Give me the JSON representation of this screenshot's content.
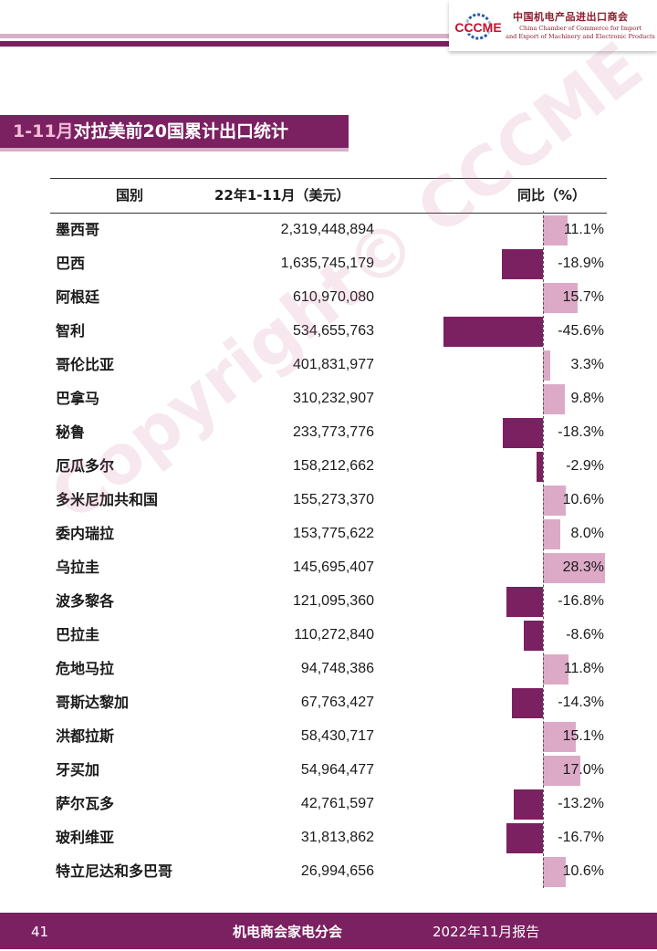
{
  "header": {
    "logo_mark": "CCCME",
    "logo_cn": "中国机电产品进出口商会",
    "logo_en_line1": "China Chamber of Commerce for Import",
    "logo_en_line2": "and Export of Machinery and Electronic Products",
    "brand_color": "#7b2061",
    "accent_color": "#d7b0c8"
  },
  "title": {
    "accent": "1-11月",
    "main": "对拉美前20国累计出口统计"
  },
  "table": {
    "columns": [
      "国别",
      "22年1-11月（美元）",
      "同比（%）"
    ],
    "rows": [
      {
        "country": "墨西哥",
        "value": "2,319,448,894",
        "pct_label": "11.1%",
        "pct": 11.1
      },
      {
        "country": "巴西",
        "value": "1,635,745,179",
        "pct_label": "-18.9%",
        "pct": -18.9
      },
      {
        "country": "阿根廷",
        "value": "610,970,080",
        "pct_label": "15.7%",
        "pct": 15.7
      },
      {
        "country": "智利",
        "value": "534,655,763",
        "pct_label": "-45.6%",
        "pct": -45.6
      },
      {
        "country": "哥伦比亚",
        "value": "401,831,977",
        "pct_label": "3.3%",
        "pct": 3.3
      },
      {
        "country": "巴拿马",
        "value": "310,232,907",
        "pct_label": "9.8%",
        "pct": 9.8
      },
      {
        "country": "秘鲁",
        "value": "233,773,776",
        "pct_label": "-18.3%",
        "pct": -18.3
      },
      {
        "country": "厄瓜多尔",
        "value": "158,212,662",
        "pct_label": "-2.9%",
        "pct": -2.9
      },
      {
        "country": "多米尼加共和国",
        "value": "155,273,370",
        "pct_label": "10.6%",
        "pct": 10.6
      },
      {
        "country": "委内瑞拉",
        "value": "153,775,622",
        "pct_label": "8.0%",
        "pct": 8.0
      },
      {
        "country": "乌拉圭",
        "value": "145,695,407",
        "pct_label": "28.3%",
        "pct": 28.3
      },
      {
        "country": "波多黎各",
        "value": "121,095,360",
        "pct_label": "-16.8%",
        "pct": -16.8
      },
      {
        "country": "巴拉圭",
        "value": "110,272,840",
        "pct_label": "-8.6%",
        "pct": -8.6
      },
      {
        "country": "危地马拉",
        "value": "94,748,386",
        "pct_label": "11.8%",
        "pct": 11.8
      },
      {
        "country": "哥斯达黎加",
        "value": "67,763,427",
        "pct_label": "-14.3%",
        "pct": -14.3
      },
      {
        "country": "洪都拉斯",
        "value": "58,430,717",
        "pct_label": "15.1%",
        "pct": 15.1
      },
      {
        "country": "牙买加",
        "value": "54,964,477",
        "pct_label": "17.0%",
        "pct": 17.0
      },
      {
        "country": "萨尔瓦多",
        "value": "42,761,597",
        "pct_label": "-13.2%",
        "pct": -13.2
      },
      {
        "country": "玻利维亚",
        "value": "31,813,862",
        "pct_label": "-16.7%",
        "pct": -16.7
      },
      {
        "country": "特立尼达和多巴哥",
        "value": "26,994,656",
        "pct_label": "10.6%",
        "pct": 10.6
      }
    ],
    "positive_color": "#dcaac7",
    "negative_color": "#7b2061"
  },
  "watermark": "Copyright© CCCME",
  "footer": {
    "page_number": "41",
    "org": "机电商会家电分会",
    "report": "2022年11月报告"
  }
}
